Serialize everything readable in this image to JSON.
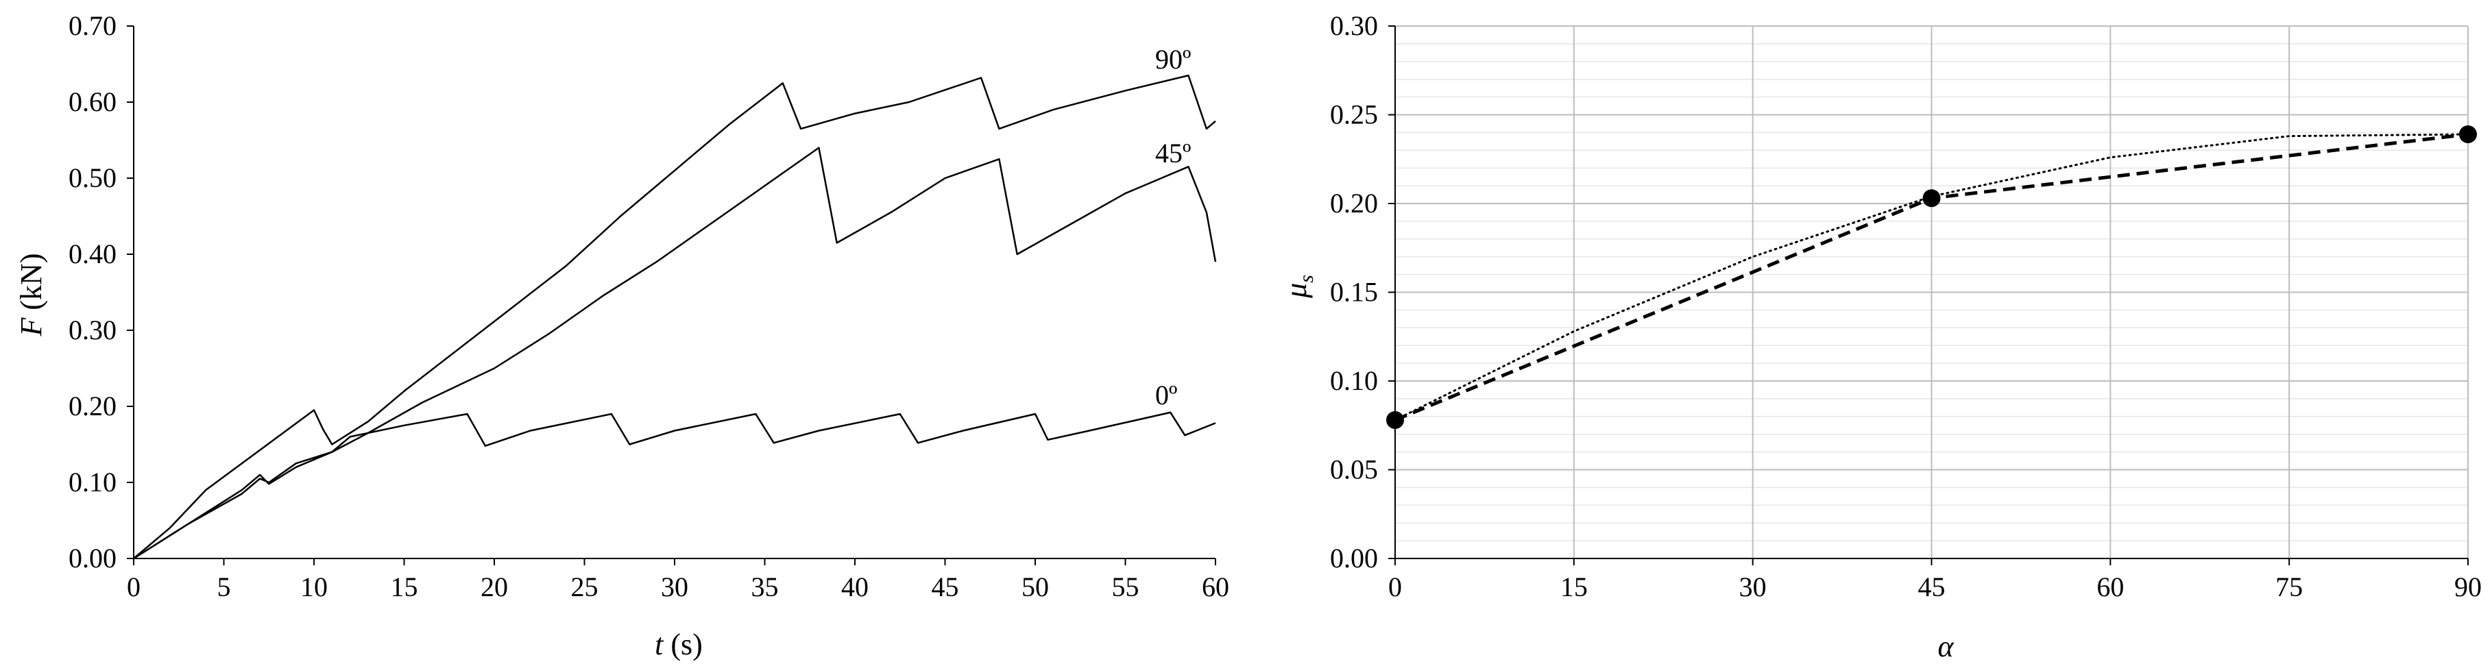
{
  "chart_data": [
    {
      "type": "line",
      "xlabel_italic": "t",
      "xlabel_rest": " (s)",
      "ylabel_italic": "F",
      "ylabel_rest": " (kN)",
      "xlim": [
        0,
        60
      ],
      "ylim": [
        0,
        0.7
      ],
      "xticks": [
        "0",
        "5",
        "10",
        "15",
        "20",
        "25",
        "30",
        "35",
        "40",
        "45",
        "50",
        "55",
        "60"
      ],
      "yticks": [
        "0.00",
        "0.10",
        "0.20",
        "0.30",
        "0.40",
        "0.50",
        "0.60",
        "0.70"
      ],
      "grid": false,
      "series": [
        {
          "name": "90º",
          "points": [
            [
              0,
              0
            ],
            [
              2,
              0.04
            ],
            [
              4,
              0.09
            ],
            [
              6,
              0.125
            ],
            [
              8,
              0.16
            ],
            [
              10,
              0.195
            ],
            [
              10.5,
              0.17
            ],
            [
              11,
              0.15
            ],
            [
              13,
              0.18
            ],
            [
              15,
              0.22
            ],
            [
              18,
              0.275
            ],
            [
              21,
              0.33
            ],
            [
              24,
              0.385
            ],
            [
              27,
              0.45
            ],
            [
              30,
              0.51
            ],
            [
              33,
              0.57
            ],
            [
              36,
              0.625
            ],
            [
              37,
              0.565
            ],
            [
              40,
              0.585
            ],
            [
              43,
              0.6
            ],
            [
              47,
              0.632
            ],
            [
              48,
              0.565
            ],
            [
              51,
              0.59
            ],
            [
              55,
              0.615
            ],
            [
              58.5,
              0.635
            ],
            [
              59.5,
              0.565
            ],
            [
              60,
              0.575
            ]
          ]
        },
        {
          "name": "45º",
          "points": [
            [
              0,
              0
            ],
            [
              3,
              0.045
            ],
            [
              6,
              0.085
            ],
            [
              7,
              0.105
            ],
            [
              7.5,
              0.1
            ],
            [
              9,
              0.125
            ],
            [
              11,
              0.14
            ],
            [
              13,
              0.165
            ],
            [
              16,
              0.205
            ],
            [
              20,
              0.25
            ],
            [
              23,
              0.295
            ],
            [
              26,
              0.345
            ],
            [
              29,
              0.39
            ],
            [
              32,
              0.44
            ],
            [
              35,
              0.49
            ],
            [
              38,
              0.54
            ],
            [
              39,
              0.415
            ],
            [
              42,
              0.455
            ],
            [
              45,
              0.5
            ],
            [
              48,
              0.525
            ],
            [
              49,
              0.4
            ],
            [
              52,
              0.44
            ],
            [
              55,
              0.48
            ],
            [
              58.5,
              0.515
            ],
            [
              59.5,
              0.455
            ],
            [
              60,
              0.39
            ]
          ]
        },
        {
          "name": "0º",
          "points": [
            [
              0,
              0
            ],
            [
              3,
              0.045
            ],
            [
              6,
              0.09
            ],
            [
              7,
              0.11
            ],
            [
              7.5,
              0.098
            ],
            [
              9,
              0.12
            ],
            [
              11,
              0.14
            ],
            [
              12,
              0.16
            ],
            [
              15,
              0.175
            ],
            [
              18.5,
              0.19
            ],
            [
              19.5,
              0.148
            ],
            [
              22,
              0.168
            ],
            [
              26.5,
              0.19
            ],
            [
              27.5,
              0.15
            ],
            [
              30,
              0.168
            ],
            [
              34.5,
              0.19
            ],
            [
              35.5,
              0.152
            ],
            [
              38,
              0.168
            ],
            [
              42.5,
              0.19
            ],
            [
              43.5,
              0.152
            ],
            [
              46,
              0.168
            ],
            [
              50,
              0.19
            ],
            [
              50.7,
              0.156
            ],
            [
              53,
              0.168
            ],
            [
              57.5,
              0.192
            ],
            [
              58.3,
              0.162
            ],
            [
              60,
              0.178
            ]
          ]
        }
      ],
      "annotations": [
        "90º",
        "45º",
        "0º"
      ],
      "line_color": "#000000"
    },
    {
      "type": "scatter",
      "xlabel": "α",
      "ylabel_base": "μ",
      "ylabel_sub": "s",
      "xlim": [
        0,
        90
      ],
      "ylim": [
        0,
        0.3
      ],
      "xticks": [
        "0",
        "15",
        "30",
        "45",
        "60",
        "75",
        "90"
      ],
      "yticks": [
        "0.00",
        "0.05",
        "0.10",
        "0.15",
        "0.20",
        "0.25",
        "0.30"
      ],
      "grid": true,
      "series": [
        {
          "x": [
            0,
            45,
            90
          ],
          "values": [
            0.078,
            0.203,
            0.239
          ],
          "marker": "filled-circle",
          "line": "dashed"
        }
      ],
      "fit_curve": {
        "style": "dotted",
        "x": [
          0,
          15,
          30,
          45,
          60,
          75,
          90
        ],
        "values": [
          0.078,
          0.128,
          0.17,
          0.204,
          0.226,
          0.238,
          0.239
        ]
      },
      "marker_color": "#000000",
      "major_grid_color": "#bdbdbd",
      "minor_grid_color": "#e6e6e6"
    }
  ]
}
